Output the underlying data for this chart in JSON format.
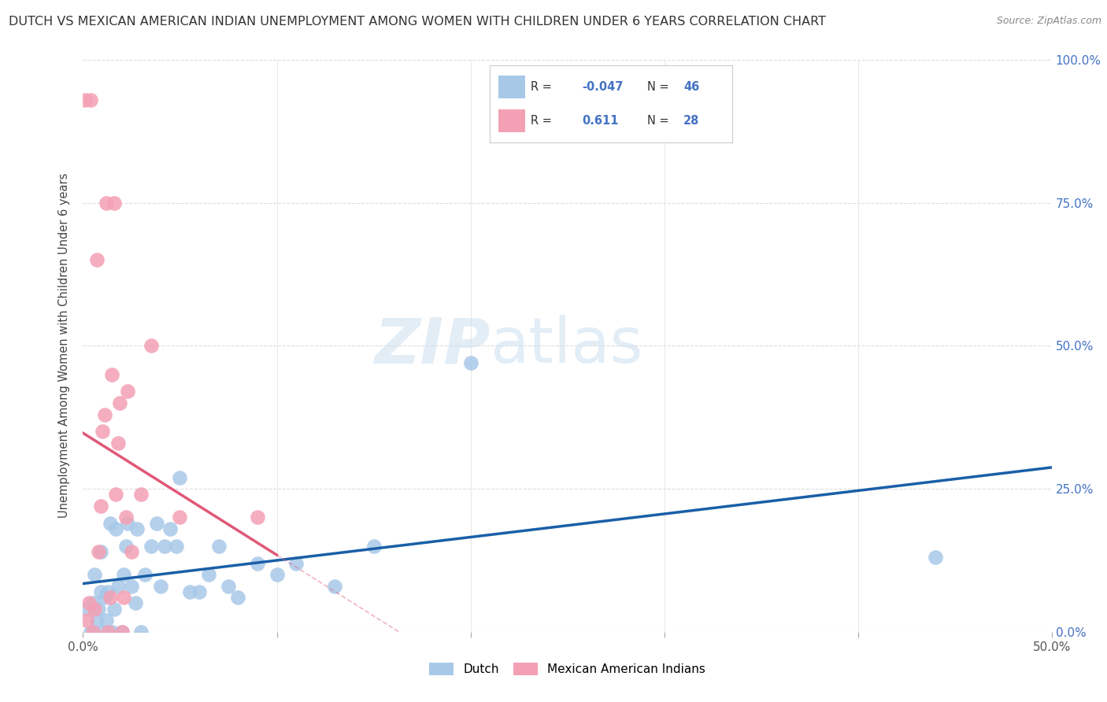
{
  "title": "DUTCH VS MEXICAN AMERICAN INDIAN UNEMPLOYMENT AMONG WOMEN WITH CHILDREN UNDER 6 YEARS CORRELATION CHART",
  "source": "Source: ZipAtlas.com",
  "ylabel": "Unemployment Among Women with Children Under 6 years",
  "xlim": [
    0.0,
    0.5
  ],
  "ylim": [
    0.0,
    1.0
  ],
  "xticks": [
    0.0,
    0.1,
    0.2,
    0.3,
    0.4,
    0.5
  ],
  "yticks": [
    0.0,
    0.25,
    0.5,
    0.75,
    1.0
  ],
  "ytick_labels_right": [
    "0.0%",
    "25.0%",
    "50.0%",
    "75.0%",
    "100.0%"
  ],
  "dutch_color": "#a8c8e8",
  "mexican_color": "#f4a0b4",
  "dutch_line_color": "#1a5fa8",
  "mexican_line_color": "#e05878",
  "dutch_R": -0.047,
  "dutch_N": 46,
  "mexican_R": 0.611,
  "mexican_N": 28,
  "dutch_x": [
    0.002,
    0.004,
    0.005,
    0.006,
    0.007,
    0.008,
    0.009,
    0.009,
    0.01,
    0.011,
    0.012,
    0.013,
    0.014,
    0.015,
    0.016,
    0.017,
    0.018,
    0.02,
    0.021,
    0.022,
    0.023,
    0.025,
    0.027,
    0.028,
    0.03,
    0.032,
    0.035,
    0.038,
    0.04,
    0.042,
    0.045,
    0.048,
    0.05,
    0.055,
    0.06,
    0.065,
    0.07,
    0.075,
    0.08,
    0.09,
    0.1,
    0.11,
    0.13,
    0.15,
    0.2,
    0.44
  ],
  "dutch_y": [
    0.04,
    0.0,
    0.05,
    0.1,
    0.02,
    0.04,
    0.07,
    0.14,
    0.0,
    0.06,
    0.02,
    0.07,
    0.19,
    0.0,
    0.04,
    0.18,
    0.08,
    0.0,
    0.1,
    0.15,
    0.19,
    0.08,
    0.05,
    0.18,
    0.0,
    0.1,
    0.15,
    0.19,
    0.08,
    0.15,
    0.18,
    0.15,
    0.27,
    0.07,
    0.07,
    0.1,
    0.15,
    0.08,
    0.06,
    0.12,
    0.1,
    0.12,
    0.08,
    0.15,
    0.47,
    0.13
  ],
  "mexican_x": [
    0.001,
    0.002,
    0.003,
    0.004,
    0.005,
    0.006,
    0.007,
    0.008,
    0.009,
    0.01,
    0.011,
    0.012,
    0.013,
    0.014,
    0.015,
    0.016,
    0.017,
    0.018,
    0.019,
    0.02,
    0.021,
    0.022,
    0.023,
    0.025,
    0.03,
    0.035,
    0.05,
    0.09
  ],
  "mexican_y": [
    0.93,
    0.02,
    0.05,
    0.93,
    0.0,
    0.04,
    0.65,
    0.14,
    0.22,
    0.35,
    0.38,
    0.75,
    0.0,
    0.06,
    0.45,
    0.75,
    0.24,
    0.33,
    0.4,
    0.0,
    0.06,
    0.2,
    0.42,
    0.14,
    0.24,
    0.5,
    0.2,
    0.2
  ]
}
